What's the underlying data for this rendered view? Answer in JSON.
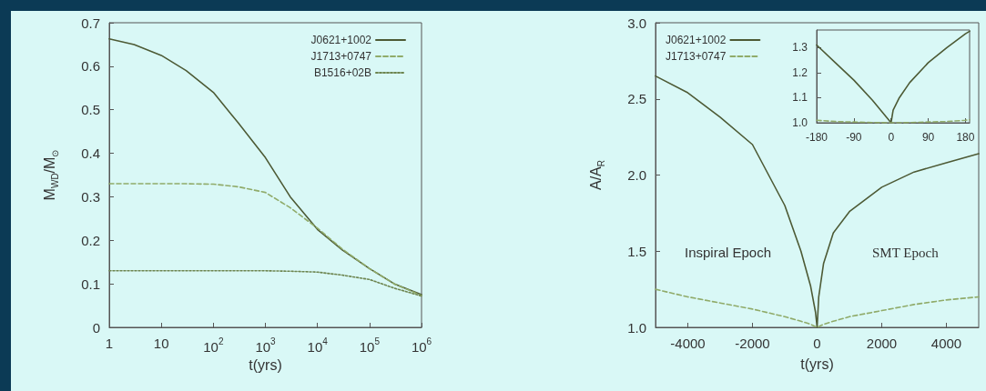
{
  "chart_data": [
    {
      "type": "line",
      "xlabel": "t(yrs)",
      "ylabel": "M$_{WD}$/M$_{⊙}$",
      "log": "x",
      "xlim": [
        1,
        1000000
      ],
      "xticks": [
        1,
        10,
        {
          "value": 100,
          "label": "10$^{2}$"
        },
        {
          "value": 1000,
          "label": "10$^{3}$"
        },
        {
          "value": 10000,
          "label": "10$^{4}$"
        },
        {
          "value": 100000,
          "label": "10$^{5}$"
        },
        {
          "value": 1000000,
          "label": "10$^{6}$"
        }
      ],
      "ylim": [
        0,
        0.7
      ],
      "yticks": [
        0,
        0.1,
        0.2,
        0.3,
        0.4,
        0.5,
        0.6,
        0.7
      ],
      "legend": "top right",
      "marker": "none",
      "grid": false,
      "x": [
        1,
        3,
        10,
        30,
        100,
        300,
        1000,
        3000,
        10000,
        30000,
        100000,
        300000,
        1000000
      ],
      "series": [
        {
          "name": "J0621+1002",
          "color": "#4d5a35",
          "line_style": "solid",
          "values": [
            0.663,
            0.65,
            0.625,
            0.59,
            0.54,
            0.47,
            0.39,
            0.3,
            0.225,
            0.178,
            0.135,
            0.1,
            0.075
          ]
        },
        {
          "name": "J1713+0747",
          "color": "#90ab6a",
          "line_style": "dashed",
          "values": [
            0.33,
            0.33,
            0.33,
            0.33,
            0.329,
            0.323,
            0.31,
            0.275,
            0.228,
            0.18,
            0.135,
            0.1,
            0.073
          ]
        },
        {
          "name": "B1516+02B",
          "color": "#6d8550",
          "line_style": "dotted",
          "values": [
            0.13,
            0.13,
            0.13,
            0.13,
            0.13,
            0.13,
            0.13,
            0.129,
            0.127,
            0.12,
            0.11,
            0.09,
            0.072
          ]
        }
      ]
    },
    {
      "type": "line",
      "xlabel": "t(yrs)",
      "ylabel": "A/A$_{R}$",
      "xlim": [
        -5000,
        5000
      ],
      "xticks": [
        -4000,
        -2000,
        0,
        2000,
        4000
      ],
      "ylim": [
        1,
        3
      ],
      "yticks": [
        {
          "value": 1,
          "label": "1.0"
        },
        1.5,
        {
          "value": 2,
          "label": "2.0"
        },
        2.5,
        {
          "value": 3,
          "label": "3.0"
        }
      ],
      "legend": "top left",
      "marker": "none",
      "grid": false,
      "annotations": [
        "Inspiral Epoch",
        "SMT Epoch"
      ],
      "x": [
        -5000,
        -4000,
        -3000,
        -2000,
        -1000,
        -500,
        -200,
        -50,
        0,
        50,
        200,
        500,
        1000,
        2000,
        3000,
        4000,
        5000
      ],
      "series": [
        {
          "name": "J0621+1002",
          "color": "#4d5a35",
          "line_style": "solid",
          "values": [
            2.65,
            2.54,
            2.38,
            2.2,
            1.8,
            1.5,
            1.27,
            1.1,
            1.0,
            1.2,
            1.42,
            1.62,
            1.76,
            1.92,
            2.02,
            2.08,
            2.14
          ]
        },
        {
          "name": "J1713+0747",
          "color": "#90ab6a",
          "line_style": "dashed",
          "values": [
            1.25,
            1.2,
            1.16,
            1.12,
            1.07,
            1.04,
            1.02,
            1.005,
            1.0,
            1.005,
            1.02,
            1.04,
            1.07,
            1.11,
            1.15,
            1.18,
            1.2
          ]
        }
      ]
    },
    {
      "type": "line",
      "xlim": [
        -180,
        190
      ],
      "xticks": [
        -180,
        -90,
        0,
        90,
        180
      ],
      "ylim": [
        1,
        1.37
      ],
      "yticks": [
        {
          "value": 1,
          "label": "1.0"
        },
        1.1,
        1.2,
        1.3
      ],
      "marker": "none",
      "grid": false,
      "x": [
        -180,
        -135,
        -90,
        -45,
        0,
        5,
        20,
        45,
        90,
        135,
        180,
        190
      ],
      "series": [
        {
          "color": "#4d5a35",
          "line_style": "solid",
          "values": [
            1.31,
            1.24,
            1.17,
            1.09,
            1.0,
            1.05,
            1.1,
            1.16,
            1.24,
            1.3,
            1.355,
            1.365
          ]
        },
        {
          "color": "#90ab6a",
          "line_style": "dashed",
          "values": [
            1.01,
            1.005,
            1.003,
            1.001,
            1.0,
            1.0,
            1.0,
            1.001,
            1.003,
            1.005,
            1.01,
            1.012
          ]
        }
      ]
    }
  ]
}
